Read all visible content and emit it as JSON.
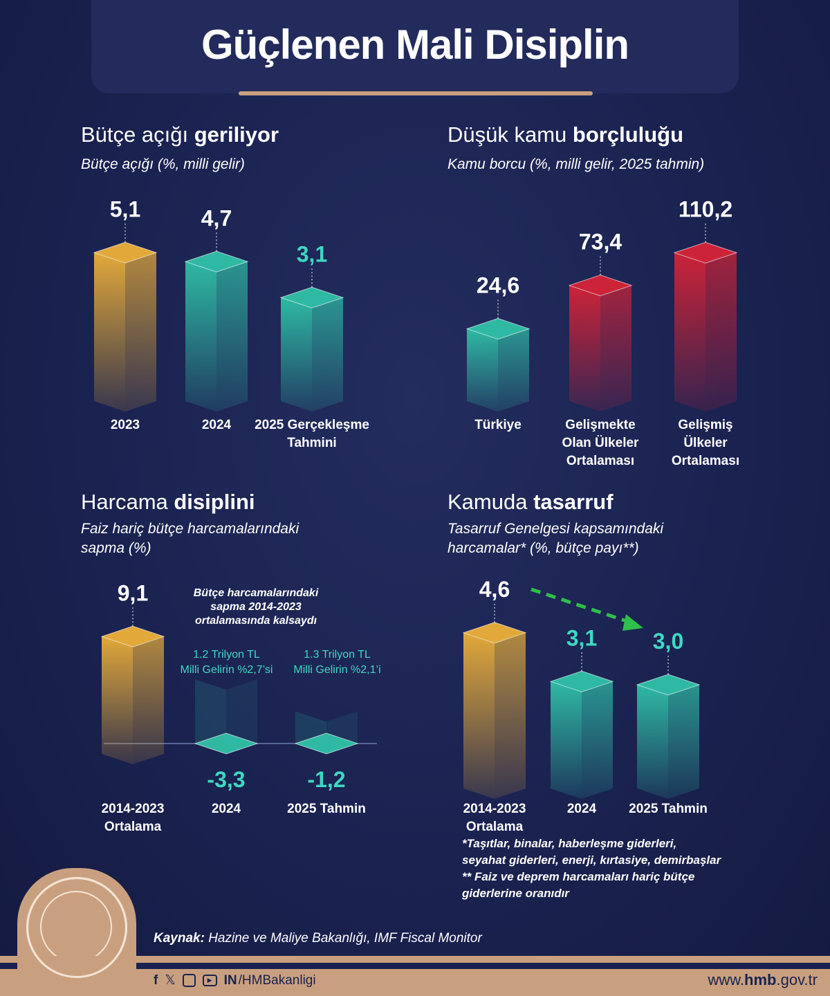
{
  "title": "Güçlenen Mali Disiplin",
  "colors": {
    "gold": "#e2a93a",
    "teal": "#2fb9a3",
    "red": "#cc2338",
    "teal_text": "#3fd8c2",
    "background": "#1b2452",
    "footer": "#c9a07f",
    "arrow": "#2fbf4a"
  },
  "chart_data": [
    {
      "type": "bar",
      "heading_plain": "Bütçe açığı ",
      "heading_bold": "geriliyor",
      "title": "Bütçe açığı (%, milli gelir)",
      "categories": [
        "2023",
        "2024",
        "2025 Gerçekleşme\nTahmini"
      ],
      "values": [
        5.1,
        4.7,
        3.1
      ],
      "labels": [
        "5,1",
        "4,7",
        "3,1"
      ],
      "bar_colors": [
        "gold",
        "teal",
        "teal"
      ],
      "label_colors": [
        "white",
        "white",
        "teal"
      ]
    },
    {
      "type": "bar",
      "heading_plain": "Düşük kamu ",
      "heading_bold": "borçluluğu",
      "title": "Kamu borcu (%, milli gelir, 2025 tahmin)",
      "categories": [
        "Türkiye",
        "Gelişmekte\nOlan Ülkeler\nOrtalaması",
        "Gelişmiş\nÜlkeler\nOrtalaması"
      ],
      "values": [
        24.6,
        73.4,
        110.2
      ],
      "labels": [
        "24,6",
        "73,4",
        "110,2"
      ],
      "bar_colors": [
        "teal",
        "red",
        "red"
      ],
      "label_colors": [
        "white",
        "white",
        "white"
      ]
    },
    {
      "type": "bar",
      "heading_plain": "Harcama ",
      "heading_bold": "disiplini",
      "title": "Faiz hariç bütçe harcamalarındaki\nsapma (%)",
      "categories": [
        "2014-2023\nOrtalama",
        "2024",
        "2025 Tahmin"
      ],
      "values": [
        9.1,
        -3.3,
        -1.2
      ],
      "labels": [
        "9,1",
        "-3,3",
        "-1,2"
      ],
      "bar_colors": [
        "gold",
        "teal",
        "teal"
      ],
      "label_colors": [
        "white",
        "teal",
        "teal"
      ],
      "annotation": "Bütçe harcamalarındaki\nsapma 2014-2023\nortalamasında kalsaydı",
      "bar_notes": [
        "",
        "1.2 Trilyon TL\nMilli Gelirin %2,7’si",
        "1.3 Trilyon TL\nMilli Gelirin %2,1’i"
      ]
    },
    {
      "type": "bar",
      "heading_plain": "Kamuda ",
      "heading_bold": "tasarruf",
      "title": "Tasarruf Genelgesi kapsamındaki\nharcamalar* (%, bütçe payı**)",
      "categories": [
        "2014-2023\nOrtalama",
        "2024",
        "2025 Tahmin"
      ],
      "values": [
        4.6,
        3.1,
        3.0
      ],
      "labels": [
        "4,6",
        "3,1",
        "3,0"
      ],
      "bar_colors": [
        "gold",
        "teal",
        "teal"
      ],
      "label_colors": [
        "white",
        "teal",
        "teal"
      ],
      "footnote": "*Taşıtlar, binalar, haberleşme giderleri,\nseyahat giderleri, enerji, kırtasiye, demirbaşlar\n** Faiz ve deprem harcamaları hariç bütçe\ngiderlerine oranıdır"
    }
  ],
  "footer": {
    "source_label": "Kaynak:",
    "source_text": " Hazine ve Maliye Bakanlığı, IMF Fiscal Monitor",
    "social_icons": [
      "facebook-icon",
      "x-icon",
      "instagram-icon",
      "youtube-icon",
      "nsosyal-icon"
    ],
    "handle": "/HMBakanligi",
    "url_pre": "www.",
    "url_bold": "hmb",
    "url_post": ".gov.tr"
  }
}
